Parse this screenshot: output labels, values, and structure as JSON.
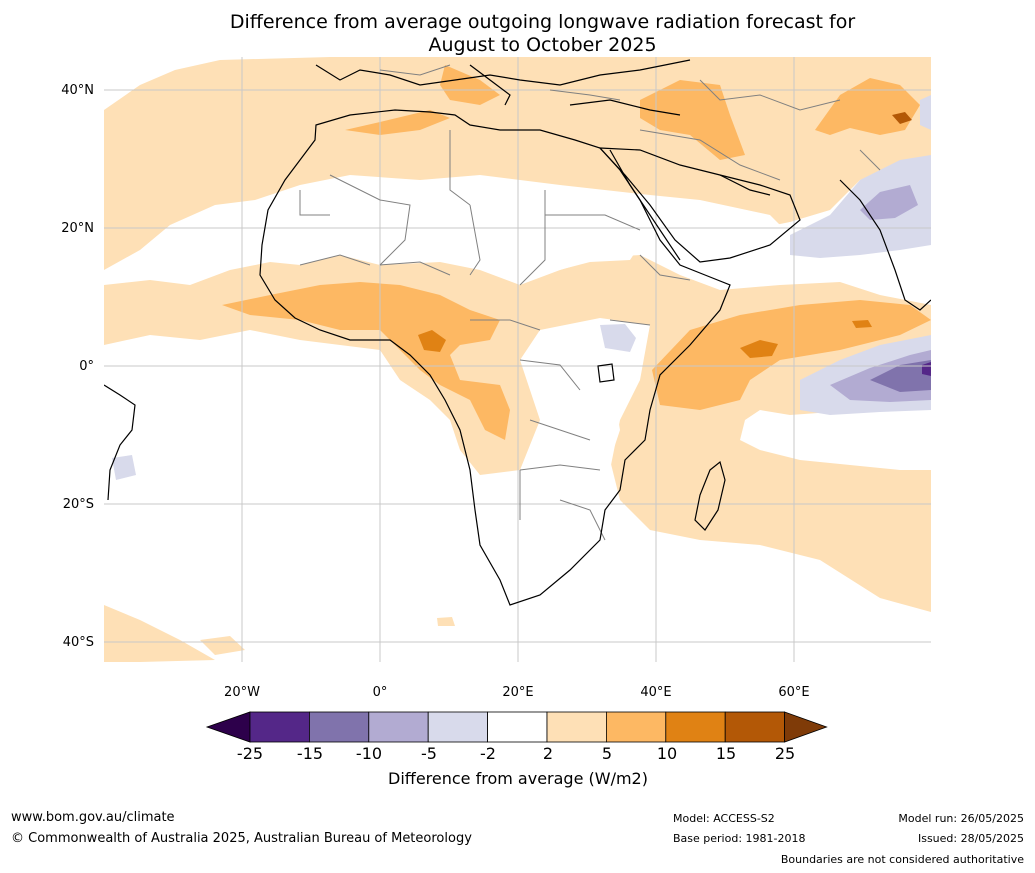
{
  "title": {
    "line1": "Difference from average outgoing longwave radiation forecast for",
    "line2": "August to October 2025"
  },
  "map": {
    "lat_labels": [
      "40°N",
      "20°N",
      "0°",
      "20°S",
      "40°S"
    ],
    "lon_labels": [
      "20°W",
      "0°",
      "20°E",
      "40°E",
      "60°E"
    ],
    "colors": {
      "ocean_background": "#ffffff",
      "gridline": "#c8c8c8",
      "coastline": "#000000",
      "border": "#808080"
    }
  },
  "colorbar": {
    "ticks": [
      "-25",
      "-15",
      "-10",
      "-5",
      "-2",
      "2",
      "5",
      "10",
      "15",
      "25"
    ],
    "colors": [
      "#2d004b",
      "#542788",
      "#8073ac",
      "#b2abd2",
      "#d8daeb",
      "#ffffff",
      "#fee0b6",
      "#fdb863",
      "#e08214",
      "#b35806",
      "#7f3b08"
    ],
    "label": "Difference from average (W/m2)"
  },
  "footer": {
    "url": "www.bom.gov.au/climate",
    "copyright": "© Commonwealth of Australia 2025, Australian Bureau of Meteorology",
    "model": "Model: ACCESS-S2",
    "base_period": "Base period: 1981-2018",
    "model_run": "Model run: 26/05/2025",
    "issued": "Issued: 28/05/2025",
    "disclaimer": "Boundaries are not considered authoritative"
  }
}
